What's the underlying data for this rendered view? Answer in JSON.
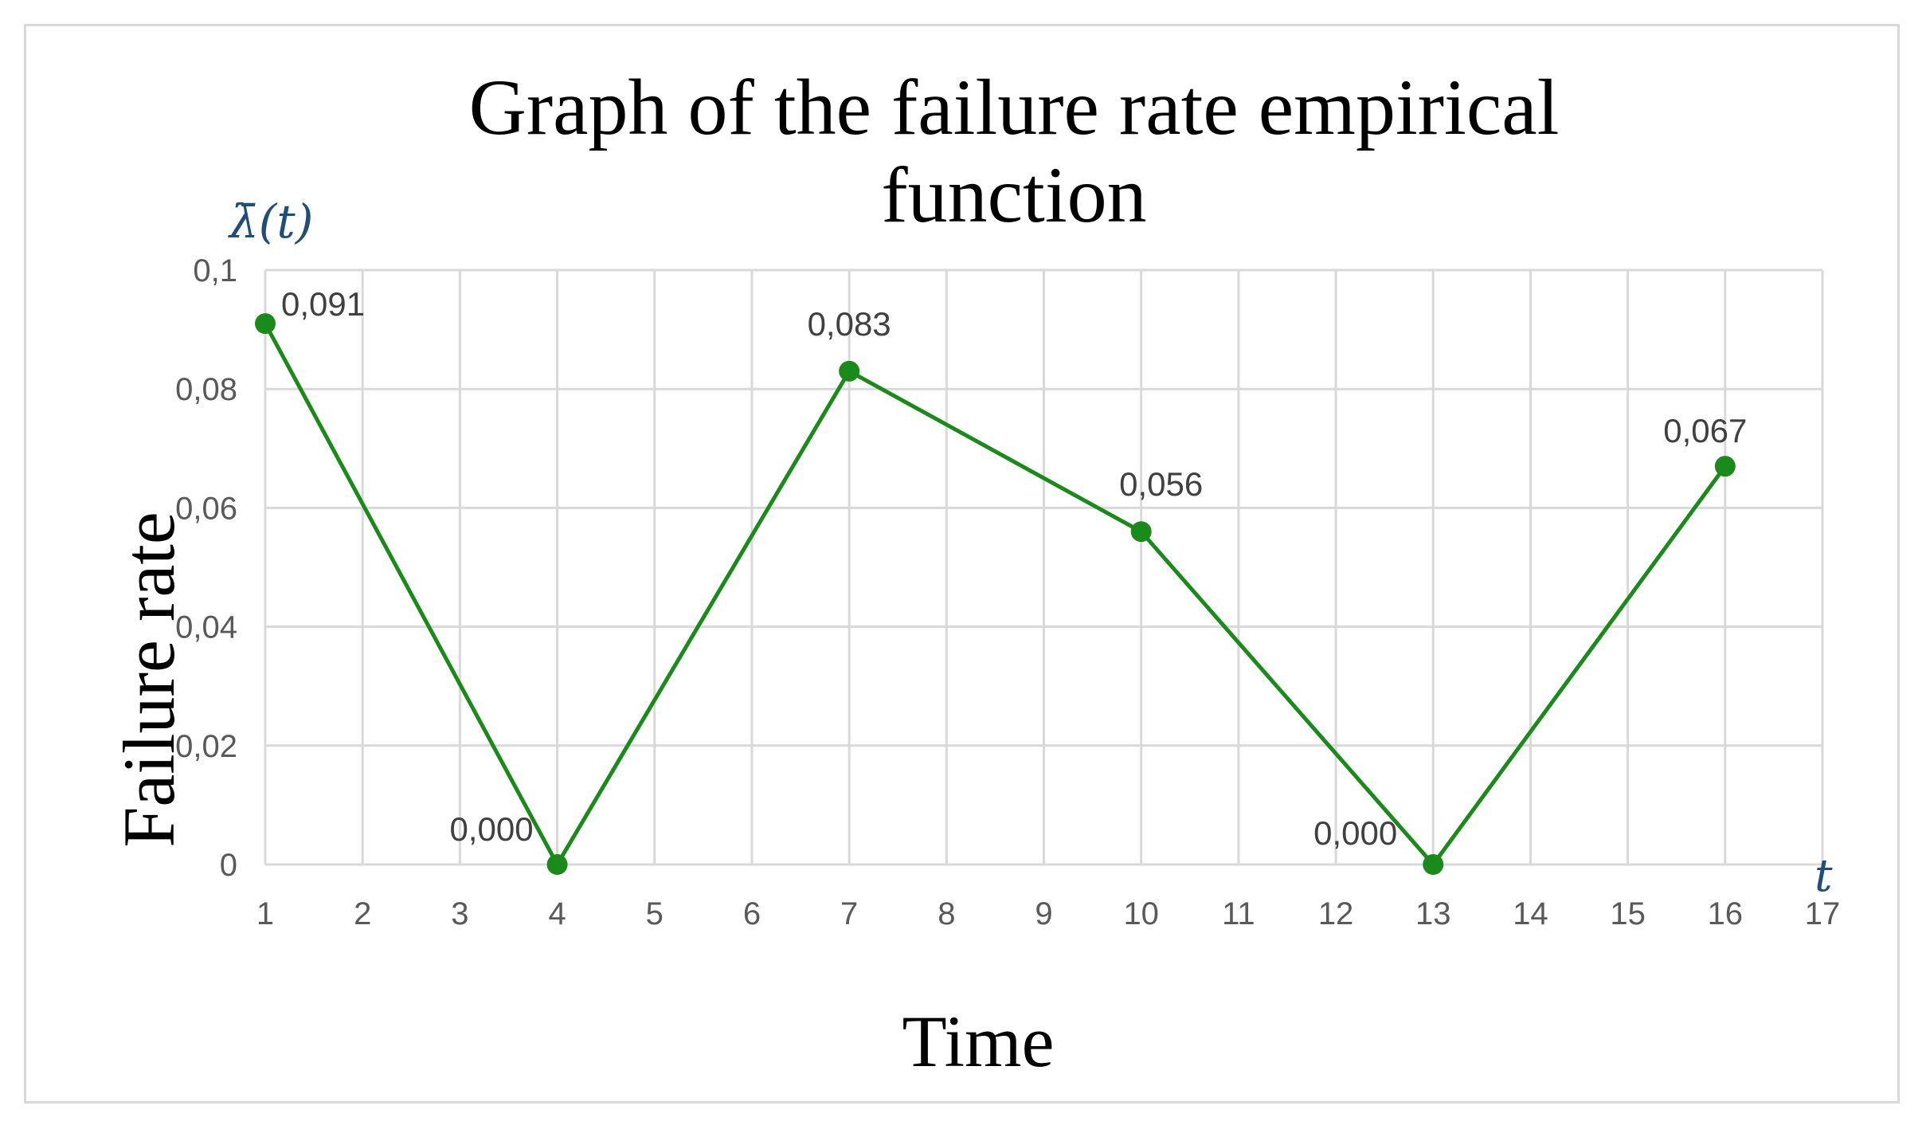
{
  "chart_data": {
    "type": "line",
    "title": "Graph of the failure rate empirical function",
    "title_lines": [
      "Graph of the failure rate empirical",
      "function"
    ],
    "xlabel": "Time",
    "ylabel": "Failure rate",
    "y_symbol": "λ̄(t)",
    "x_symbol": "t",
    "x_ticks": [
      "1",
      "2",
      "3",
      "4",
      "5",
      "6",
      "7",
      "8",
      "9",
      "10",
      "11",
      "12",
      "13",
      "14",
      "15",
      "16",
      "17"
    ],
    "y_ticks": [
      "0",
      "0,02",
      "0,04",
      "0,06",
      "0,08",
      "0,1"
    ],
    "xlim": [
      1,
      17
    ],
    "ylim": [
      0,
      0.1
    ],
    "grid": true,
    "color": "#1a8a1a",
    "series": [
      {
        "x": [
          1,
          4,
          7,
          10,
          13,
          16
        ],
        "values": [
          0.091,
          0.0,
          0.083,
          0.056,
          0.0,
          0.067
        ],
        "labels": [
          "0,091",
          "0,000",
          "0,083",
          "0,056",
          "0,000",
          "0,067"
        ]
      }
    ]
  }
}
